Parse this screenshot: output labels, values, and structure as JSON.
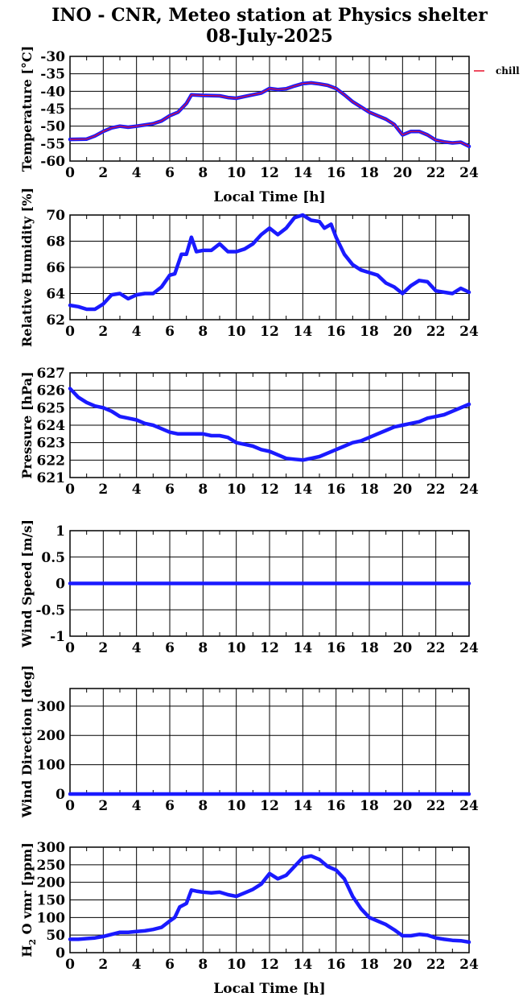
{
  "title": "INO - CNR, Meteo station at Physics shelter",
  "subtitle": "08-July-2025",
  "legend": {
    "label": "chill",
    "color": "#e8102a"
  },
  "colors": {
    "series": "#1a1aff",
    "grid": "#000000"
  },
  "chart_data": [
    {
      "type": "line",
      "ylabel": "Temperature [°C]",
      "xlabel": "Local Time [h]",
      "xlim": [
        0,
        24
      ],
      "ylim": [
        -60,
        -30
      ],
      "xticks": [
        0,
        2,
        4,
        6,
        8,
        10,
        12,
        14,
        16,
        18,
        20,
        22,
        24
      ],
      "yticks": [
        -60,
        -55,
        -50,
        -45,
        -40,
        -35,
        -30
      ],
      "grid": true,
      "legend_position": "right",
      "series": [
        {
          "name": "",
          "x": [
            0,
            1,
            1.5,
            2,
            2.5,
            3,
            3.5,
            4,
            5,
            5.5,
            6,
            6.5,
            7,
            7.3,
            8,
            9,
            9.5,
            10,
            10.5,
            11,
            11.5,
            12,
            12.5,
            13,
            13.5,
            14,
            14.5,
            15,
            15.5,
            16,
            16.5,
            17,
            17.5,
            18,
            18.5,
            19,
            19.5,
            20,
            20.5,
            21,
            21.5,
            22,
            22.5,
            23,
            23.5,
            24
          ],
          "y": [
            -53.8,
            -53.7,
            -52.8,
            -51.5,
            -50.5,
            -50,
            -50.3,
            -50,
            -49.3,
            -48.5,
            -47,
            -46,
            -43.5,
            -41,
            -41.2,
            -41.3,
            -41.8,
            -42,
            -41.5,
            -41,
            -40.5,
            -39.2,
            -39.5,
            -39.3,
            -38.5,
            -37.8,
            -37.6,
            -37.9,
            -38.3,
            -39.2,
            -41,
            -43,
            -44.5,
            -46,
            -47,
            -48,
            -49.5,
            -52.5,
            -51.5,
            -51.5,
            -52.5,
            -54,
            -54.5,
            -54.8,
            -54.6,
            -55.8
          ]
        }
      ]
    },
    {
      "type": "line",
      "ylabel": "Relative Humidity [%]",
      "xlim": [
        0,
        24
      ],
      "ylim": [
        62,
        70
      ],
      "xticks": [
        0,
        2,
        4,
        6,
        8,
        10,
        12,
        14,
        16,
        18,
        20,
        22,
        24
      ],
      "yticks": [
        62,
        64,
        66,
        68,
        70
      ],
      "grid": true,
      "series": [
        {
          "name": "",
          "x": [
            0,
            0.5,
            1,
            1.5,
            2,
            2.5,
            3,
            3.5,
            4,
            4.5,
            5,
            5.5,
            6,
            6.3,
            6.7,
            7,
            7.3,
            7.6,
            8,
            8.5,
            9,
            9.5,
            10,
            10.5,
            11,
            11.5,
            12,
            12.5,
            13,
            13.5,
            14,
            14.5,
            15,
            15.3,
            15.7,
            16,
            16.5,
            17,
            17.5,
            18,
            18.5,
            19,
            19.5,
            20,
            20.5,
            21,
            21.5,
            22,
            22.5,
            23,
            23.5,
            24
          ],
          "y": [
            63.1,
            63,
            62.8,
            62.8,
            63.2,
            63.9,
            64,
            63.6,
            63.9,
            64,
            64,
            64.5,
            65.4,
            65.5,
            67,
            67,
            68.3,
            67.2,
            67.3,
            67.3,
            67.8,
            67.2,
            67.2,
            67.4,
            67.8,
            68.5,
            69,
            68.5,
            69,
            69.8,
            70,
            69.6,
            69.5,
            69,
            69.3,
            68.3,
            67,
            66.2,
            65.8,
            65.6,
            65.4,
            64.8,
            64.5,
            64,
            64.6,
            65,
            64.9,
            64.2,
            64.1,
            64,
            64.4,
            64.1
          ]
        }
      ]
    },
    {
      "type": "line",
      "ylabel": "Pressure [hPa]",
      "xlim": [
        0,
        24
      ],
      "ylim": [
        621,
        627
      ],
      "xticks": [
        0,
        2,
        4,
        6,
        8,
        10,
        12,
        14,
        16,
        18,
        20,
        22,
        24
      ],
      "yticks": [
        621,
        622,
        623,
        624,
        625,
        626,
        627
      ],
      "grid": true,
      "series": [
        {
          "name": "",
          "x": [
            0,
            0.5,
            1,
            1.5,
            2,
            2.5,
            3,
            3.5,
            4,
            4.5,
            5,
            5.5,
            6,
            6.5,
            7,
            7.5,
            8,
            8.5,
            9,
            9.5,
            10,
            10.5,
            11,
            11.5,
            12,
            12.5,
            13,
            13.5,
            14,
            14.5,
            15,
            15.5,
            16,
            16.5,
            17,
            17.5,
            18,
            18.5,
            19,
            19.5,
            20,
            20.5,
            21,
            21.5,
            22,
            22.5,
            23,
            23.5,
            24
          ],
          "y": [
            626.1,
            625.6,
            625.3,
            625.1,
            625,
            624.8,
            624.5,
            624.4,
            624.3,
            624.1,
            624,
            623.8,
            623.6,
            623.5,
            623.5,
            623.5,
            623.5,
            623.4,
            623.4,
            623.3,
            623,
            622.9,
            622.8,
            622.6,
            622.5,
            622.3,
            622.1,
            622.05,
            622,
            622.1,
            622.2,
            622.4,
            622.6,
            622.8,
            623,
            623.1,
            623.3,
            623.5,
            623.7,
            623.9,
            624,
            624.1,
            624.2,
            624.4,
            624.5,
            624.6,
            624.8,
            625,
            625.2
          ]
        }
      ]
    },
    {
      "type": "line",
      "ylabel": "Wind Speed [m/s]",
      "xlim": [
        0,
        24
      ],
      "ylim": [
        -1,
        1
      ],
      "xticks": [
        0,
        2,
        4,
        6,
        8,
        10,
        12,
        14,
        16,
        18,
        20,
        22,
        24
      ],
      "yticks": [
        -1,
        -0.5,
        0,
        0.5,
        1
      ],
      "grid": true,
      "series": [
        {
          "name": "",
          "x": [
            0,
            24
          ],
          "y": [
            0,
            0
          ]
        }
      ]
    },
    {
      "type": "line",
      "ylabel": "Wind Direction [deg]",
      "xlim": [
        0,
        24
      ],
      "ylim": [
        0,
        360
      ],
      "xticks": [
        0,
        2,
        4,
        6,
        8,
        10,
        12,
        14,
        16,
        18,
        20,
        22,
        24
      ],
      "yticks": [
        0,
        100,
        200,
        300
      ],
      "grid": true,
      "series": [
        {
          "name": "",
          "x": [
            0,
            24
          ],
          "y": [
            0,
            0
          ]
        }
      ]
    },
    {
      "type": "line",
      "ylabel": "H2O vmr [ppm]",
      "xlabel": "Local Time [h]",
      "xlim": [
        0,
        24
      ],
      "ylim": [
        0,
        300
      ],
      "xticks": [
        0,
        2,
        4,
        6,
        8,
        10,
        12,
        14,
        16,
        18,
        20,
        22,
        24
      ],
      "yticks": [
        0,
        50,
        100,
        150,
        200,
        250,
        300
      ],
      "grid": true,
      "series": [
        {
          "name": "",
          "x": [
            0,
            0.5,
            1,
            1.5,
            2,
            2.5,
            3,
            3.5,
            4,
            4.5,
            5,
            5.5,
            6,
            6.3,
            6.6,
            7,
            7.3,
            7.6,
            8,
            8.5,
            9,
            9.5,
            10,
            10.5,
            11,
            11.5,
            12,
            12.5,
            13,
            13.5,
            14,
            14.5,
            15,
            15.5,
            16,
            16.5,
            17,
            17.5,
            18,
            18.5,
            19,
            19.5,
            20,
            20.5,
            21,
            21.5,
            22,
            22.5,
            23,
            23.5,
            24
          ],
          "y": [
            38,
            38,
            40,
            42,
            46,
            52,
            58,
            58,
            60,
            62,
            66,
            72,
            90,
            100,
            130,
            140,
            178,
            175,
            172,
            170,
            172,
            165,
            160,
            170,
            180,
            195,
            225,
            210,
            220,
            245,
            270,
            275,
            265,
            245,
            235,
            210,
            160,
            125,
            100,
            90,
            80,
            65,
            48,
            48,
            52,
            50,
            42,
            38,
            35,
            34,
            30
          ]
        }
      ]
    }
  ]
}
